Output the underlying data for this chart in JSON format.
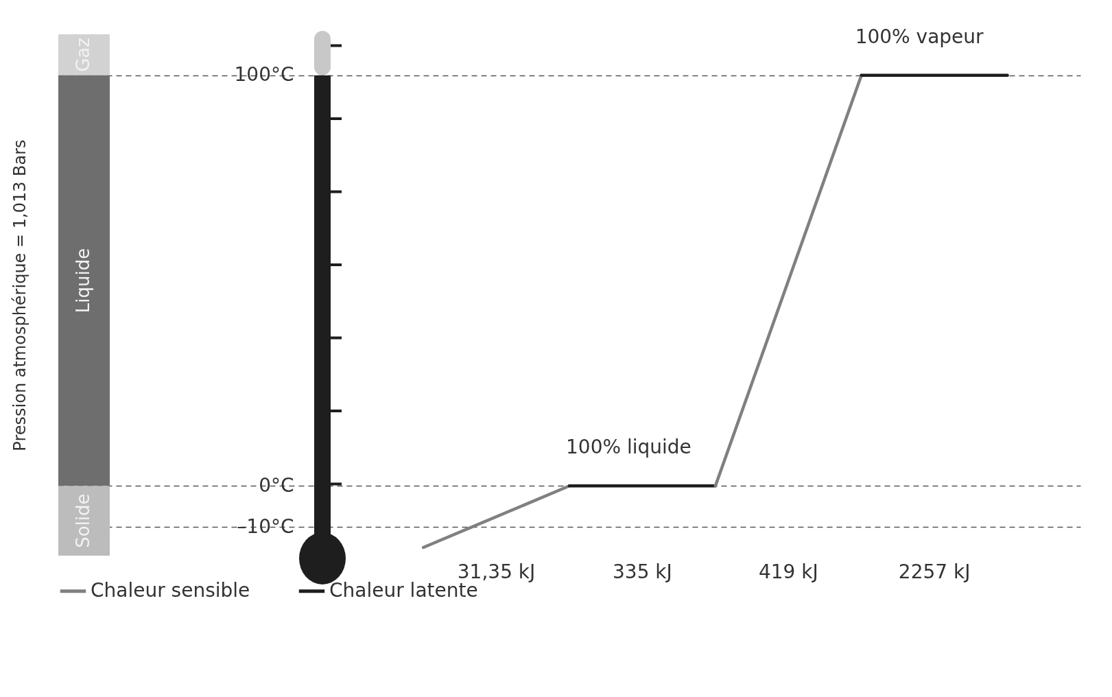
{
  "chart_data": {
    "type": "line",
    "ylabel": "Pression atmosphérique = 1,013 Bars",
    "categories": [
      null,
      null,
      null,
      null,
      null,
      null,
      null
    ],
    "series": [
      {
        "name": "Chaleur sensible",
        "color": "#808080",
        "values": [
          null,
          null,
          -15,
          0,
          null,
          null,
          null
        ]
      },
      {
        "name": "Chaleur latente",
        "color": "#1e1e1e",
        "values": [
          null,
          null,
          null,
          0,
          0,
          null,
          null
        ]
      },
      {
        "color": "#808080",
        "values": [
          null,
          null,
          null,
          null,
          0,
          100,
          null
        ]
      },
      {
        "color": "#1e1e1e",
        "values": [
          null,
          null,
          null,
          null,
          null,
          100,
          100
        ]
      }
    ],
    "ylim": [
      -17,
      110
    ],
    "yticks": [
      {
        "value": -10,
        "label": "–10°C"
      },
      {
        "value": 0,
        "label": "0°C"
      },
      {
        "value": 100,
        "label": "100°C"
      }
    ],
    "bands": [
      {
        "axis": "y",
        "from": 100,
        "to": 110,
        "label": "Gaz",
        "color": "#d2d2d2"
      },
      {
        "axis": "y",
        "from": 0,
        "to": 100,
        "label": "Liquide",
        "color": "#6e6e6e"
      },
      {
        "axis": "y",
        "from": -17,
        "to": 0,
        "label": "Solide",
        "color": "#bcbcbc"
      }
    ],
    "annotations": [
      "31,35 kJ",
      "335 kJ",
      "419 kJ",
      "2257 kJ",
      {
        "text": "100% liquide",
        "y": 0
      },
      {
        "text": "100% vapeur",
        "y": 100
      }
    ],
    "legend": "bottom",
    "grid": "y",
    "line_style": "solid",
    "marker": "none"
  }
}
